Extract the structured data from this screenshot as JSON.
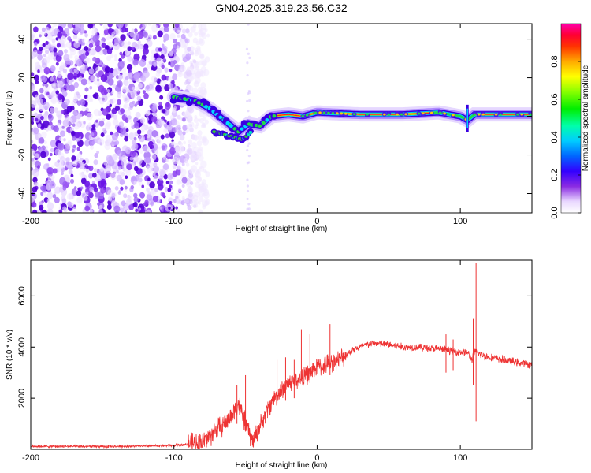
{
  "title": "GN04.2025.319.23.56.C32",
  "chart_data": [
    {
      "type": "heatmap",
      "name": "spectrogram",
      "xlabel": "Height of straight line (km)",
      "ylabel": "Frequency (Hz)",
      "xlim": [
        -200,
        150
      ],
      "ylim": [
        -50,
        48
      ],
      "xticks": [
        -200,
        -100,
        0,
        100
      ],
      "yticks": [
        -40,
        -20,
        0,
        20,
        40
      ],
      "colorbar": {
        "label": "Normalized spectral amplitude",
        "range": [
          0,
          1
        ],
        "ticks": [
          0.0,
          0.2,
          0.4,
          0.6,
          0.8
        ]
      },
      "noise_region": {
        "x_range": [
          -200,
          -90
        ],
        "description_amplitude": "low"
      },
      "ridge": [
        {
          "x": -100,
          "f": 10
        },
        {
          "x": -92,
          "f": 9
        },
        {
          "x": -85,
          "f": 8
        },
        {
          "x": -75,
          "f": 4
        },
        {
          "x": -65,
          "f": -2
        },
        {
          "x": -55,
          "f": -8
        },
        {
          "x": -48,
          "f": -4
        },
        {
          "x": -40,
          "f": -5
        },
        {
          "x": -32,
          "f": 0
        },
        {
          "x": -20,
          "f": 1
        },
        {
          "x": -10,
          "f": 0
        },
        {
          "x": 0,
          "f": 2
        },
        {
          "x": 30,
          "f": 1
        },
        {
          "x": 60,
          "f": 1
        },
        {
          "x": 85,
          "f": 2
        },
        {
          "x": 100,
          "f": 0
        },
        {
          "x": 105,
          "f": -2
        },
        {
          "x": 110,
          "f": 1
        },
        {
          "x": 150,
          "f": 1
        }
      ],
      "secondary_ridge": [
        {
          "x": -72,
          "f": -8
        },
        {
          "x": -62,
          "f": -10
        },
        {
          "x": -52,
          "f": -12
        },
        {
          "x": -46,
          "f": -8
        }
      ]
    },
    {
      "type": "line",
      "name": "snr",
      "xlabel": "Height of straight line (km)",
      "ylabel": "SNR (10 * v/v)",
      "xlim": [
        -200,
        150
      ],
      "ylim": [
        0,
        7400
      ],
      "xticks": [
        -200,
        -100,
        0,
        100
      ],
      "yticks": [
        2000,
        4000,
        6000
      ],
      "series": [
        {
          "name": "SNR",
          "color": "#ee3333",
          "points": [
            [
              -200,
              120
            ],
            [
              -150,
              110
            ],
            [
              -120,
              130
            ],
            [
              -100,
              150
            ],
            [
              -90,
              200
            ],
            [
              -80,
              300
            ],
            [
              -75,
              500
            ],
            [
              -70,
              800
            ],
            [
              -65,
              1000
            ],
            [
              -60,
              1300
            ],
            [
              -55,
              1800
            ],
            [
              -50,
              1000
            ],
            [
              -45,
              300
            ],
            [
              -40,
              900
            ],
            [
              -35,
              1500
            ],
            [
              -30,
              2000
            ],
            [
              -25,
              2300
            ],
            [
              -20,
              2600
            ],
            [
              -15,
              2700
            ],
            [
              -10,
              2800
            ],
            [
              -5,
              3000
            ],
            [
              0,
              3200
            ],
            [
              5,
              3300
            ],
            [
              10,
              3400
            ],
            [
              15,
              3500
            ],
            [
              20,
              3700
            ],
            [
              25,
              3900
            ],
            [
              30,
              4000
            ],
            [
              35,
              4100
            ],
            [
              40,
              4150
            ],
            [
              50,
              4100
            ],
            [
              60,
              4000
            ],
            [
              70,
              4000
            ],
            [
              80,
              3950
            ],
            [
              90,
              3900
            ],
            [
              100,
              3800
            ],
            [
              105,
              3800
            ],
            [
              108,
              3500
            ],
            [
              110,
              3800
            ],
            [
              115,
              3700
            ],
            [
              120,
              3600
            ],
            [
              130,
              3500
            ],
            [
              140,
              3400
            ],
            [
              150,
              3300
            ]
          ],
          "spikes": [
            {
              "x": 111,
              "max": 7300,
              "min": 1100
            },
            {
              "x": 109,
              "max": 5100,
              "min": 2500
            },
            {
              "x": 9,
              "max": 4900,
              "min": 2900
            },
            {
              "x": -5,
              "max": 4500,
              "min": 2600
            },
            {
              "x": -11,
              "max": 4700,
              "min": 2700
            },
            {
              "x": 90,
              "max": 4500,
              "min": 3000
            },
            {
              "x": 95,
              "max": 4300,
              "min": 3100
            },
            {
              "x": -50,
              "max": 2900,
              "min": 900
            },
            {
              "x": -56,
              "max": 2500,
              "min": 1000
            },
            {
              "x": -28,
              "max": 3500,
              "min": 1800
            },
            {
              "x": -22,
              "max": 3600,
              "min": 1900
            },
            {
              "x": -16,
              "max": 3500,
              "min": 2000
            }
          ]
        }
      ]
    }
  ]
}
